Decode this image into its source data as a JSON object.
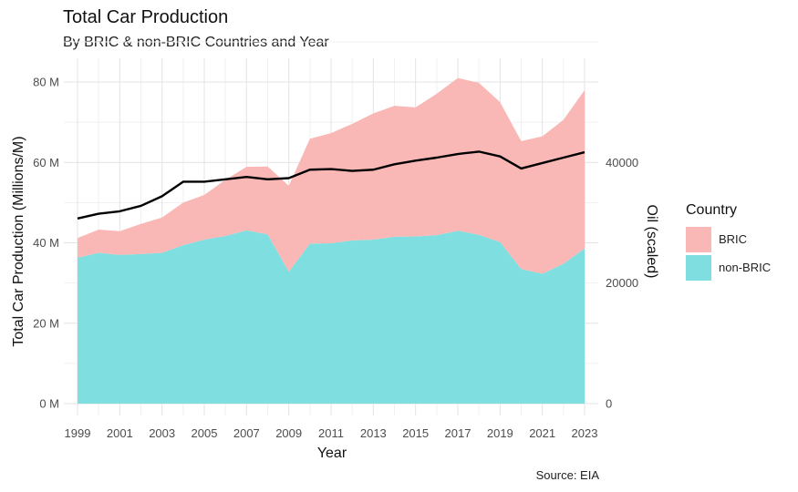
{
  "chart_data": {
    "type": "area",
    "title": "Total Car Production",
    "subtitle": "By BRIC & non-BRIC Countries and Year",
    "caption": "Source: EIA",
    "xlabel": "Year",
    "ylabel": "Total Car Production (Millions/M)",
    "y2label": "Oil (scaled)",
    "xlim": [
      1999,
      2023
    ],
    "ylim": [
      0,
      85
    ],
    "y2lim": [
      0,
      56667
    ],
    "x_ticks": [
      1999,
      2001,
      2003,
      2005,
      2007,
      2009,
      2011,
      2013,
      2015,
      2017,
      2019,
      2021,
      2023
    ],
    "y_ticks": [
      0,
      20,
      40,
      60,
      80
    ],
    "y_tick_labels": [
      "0 M",
      "20 M",
      "40 M",
      "60 M",
      "80 M"
    ],
    "y2_ticks": [
      0,
      20000,
      40000
    ],
    "y2_tick_labels": [
      "0",
      "20000",
      "40000"
    ],
    "grid": true,
    "stacked": true,
    "legend_title": "Country",
    "legend_position": "right",
    "x": [
      1999,
      2000,
      2001,
      2002,
      2003,
      2004,
      2005,
      2006,
      2007,
      2008,
      2009,
      2010,
      2011,
      2012,
      2013,
      2014,
      2015,
      2016,
      2017,
      2018,
      2019,
      2020,
      2021,
      2022,
      2023
    ],
    "series": [
      {
        "name": "non-BRIC",
        "color": "#7fdee0",
        "values": [
          36.3,
          37.5,
          37.0,
          37.2,
          37.5,
          39.4,
          40.8,
          41.7,
          43.1,
          42.1,
          32.8,
          39.8,
          39.9,
          40.6,
          40.8,
          41.5,
          41.6,
          41.9,
          43.0,
          42.0,
          40.2,
          33.5,
          32.3,
          34.8,
          38.6
        ]
      },
      {
        "name": "BRIC",
        "color": "#f9b8b5",
        "values": [
          4.9,
          5.8,
          5.9,
          7.5,
          8.8,
          10.6,
          11.1,
          14.0,
          15.8,
          16.9,
          21.4,
          26.1,
          27.4,
          29.0,
          31.4,
          32.6,
          32.1,
          35.2,
          38.0,
          37.8,
          34.8,
          31.8,
          34.2,
          35.8,
          39.4
        ]
      },
      {
        "name": "Oil (scaled)",
        "color": "#000000",
        "axis": "y2",
        "line": true,
        "values": [
          30700,
          31500,
          31900,
          32800,
          34400,
          36800,
          36800,
          37200,
          37600,
          37200,
          37400,
          38800,
          38900,
          38600,
          38800,
          39700,
          40300,
          40800,
          41400,
          41800,
          41000,
          39000,
          39900,
          40800,
          41700
        ]
      }
    ]
  }
}
